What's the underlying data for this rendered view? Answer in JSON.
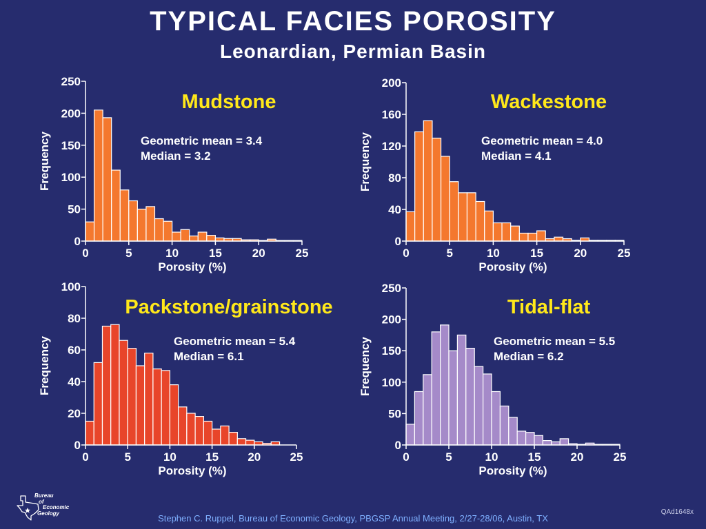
{
  "header": {
    "title": "TYPICAL FACIES POROSITY",
    "subtitle": "Leonardian, Permian Basin"
  },
  "footer": {
    "credit": "Stephen C. Ruppel, Bureau of Economic Geology, PBGSP Annual Meeting, 2/27-28/06, Austin, TX",
    "code": "QAd1648x"
  },
  "logo": {
    "line1": "Bureau",
    "line2": "of",
    "line3": "Economic",
    "line4": "Geology"
  },
  "colors": {
    "background": "#262c6e",
    "title_yellow": "#ffe81a",
    "orange_bars": "#f4782e",
    "red_bars": "#e8452a",
    "purple_bars": "#a58ac9",
    "bar_outline": "#ffffff"
  },
  "chart_data": [
    {
      "type": "bar",
      "title": "Mudstone",
      "xlabel": "Porosity (%)",
      "ylabel": "Frequency",
      "xlim": [
        0,
        25
      ],
      "ylim": [
        0,
        250
      ],
      "xticks": [
        0,
        5,
        10,
        15,
        20,
        25
      ],
      "yticks": [
        0,
        50,
        100,
        150,
        200,
        250
      ],
      "bin_width": 1,
      "values": [
        30,
        205,
        193,
        111,
        80,
        63,
        50,
        54,
        35,
        31,
        14,
        18,
        8,
        14,
        9,
        5,
        4,
        4,
        2,
        2,
        1,
        3,
        1,
        1,
        1
      ],
      "stats": [
        "Geometric mean = 3.4",
        "Median = 3.2"
      ],
      "color": "#f4782e"
    },
    {
      "type": "bar",
      "title": "Wackestone",
      "xlabel": "Porosity (%)",
      "ylabel": "Frequency",
      "xlim": [
        0,
        25
      ],
      "ylim": [
        0,
        200
      ],
      "xticks": [
        0,
        5,
        10,
        15,
        20,
        25
      ],
      "yticks": [
        0,
        40,
        80,
        120,
        160,
        200
      ],
      "bin_width": 1,
      "values": [
        37,
        138,
        152,
        130,
        107,
        75,
        61,
        61,
        50,
        38,
        23,
        23,
        19,
        10,
        10,
        13,
        3,
        5,
        3,
        1,
        4,
        1,
        1,
        1,
        1
      ],
      "stats": [
        "Geometric mean = 4.0",
        "Median = 4.1"
      ],
      "color": "#f4782e"
    },
    {
      "type": "bar",
      "title": "Packstone/grainstone",
      "xlabel": "Porosity (%)",
      "ylabel": "Frequency",
      "xlim": [
        0,
        25
      ],
      "ylim": [
        0,
        100
      ],
      "xticks": [
        0,
        5,
        10,
        15,
        20,
        25
      ],
      "yticks": [
        0,
        20,
        40,
        60,
        80,
        100
      ],
      "bin_width": 1,
      "values": [
        15,
        52,
        75,
        76,
        66,
        61,
        50,
        58,
        48,
        47,
        38,
        24,
        20,
        18,
        15,
        10,
        12,
        8,
        4,
        3,
        2,
        1,
        2,
        0,
        0
      ],
      "stats": [
        "Geometric mean = 5.4",
        "Median = 6.1"
      ],
      "color": "#e8452a"
    },
    {
      "type": "bar",
      "title": "Tidal-flat",
      "xlabel": "Porosity (%)",
      "ylabel": "Frequency",
      "xlim": [
        0,
        25
      ],
      "ylim": [
        0,
        250
      ],
      "xticks": [
        0,
        5,
        10,
        15,
        20,
        25
      ],
      "yticks": [
        0,
        50,
        100,
        150,
        200,
        250
      ],
      "bin_width": 1,
      "values": [
        33,
        85,
        112,
        180,
        191,
        150,
        175,
        154,
        125,
        113,
        85,
        62,
        44,
        22,
        20,
        15,
        7,
        5,
        10,
        2,
        1,
        3,
        1,
        1,
        1
      ],
      "stats": [
        "Geometric mean = 5.5",
        "Median = 6.2"
      ],
      "color": "#a58ac9"
    }
  ]
}
